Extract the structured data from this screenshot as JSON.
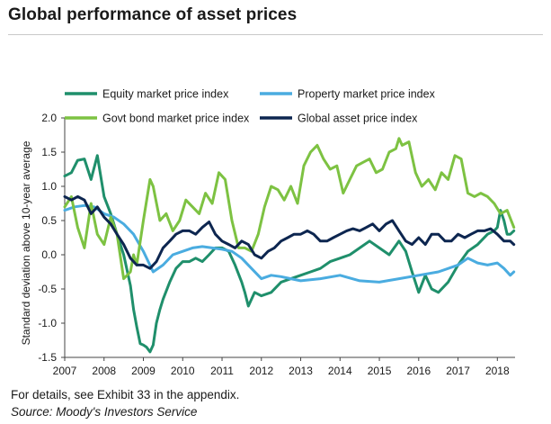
{
  "page": {
    "title": "Global performance of asset prices",
    "note": "For details, see Exhibit 33 in the appendix.",
    "source": "Source: Moody's Investors Service"
  },
  "chart_data": {
    "type": "line",
    "title": "Global performance of asset prices",
    "xlabel": "",
    "ylabel": "Standard deviation above 10-year average",
    "xlim": [
      2007.0,
      2018.45
    ],
    "ylim": [
      -1.5,
      2.0
    ],
    "x_ticks": [
      "2007",
      "2008",
      "2009",
      "2010",
      "2011",
      "2012",
      "2013",
      "2014",
      "2015",
      "2016",
      "2017",
      "2018"
    ],
    "y_ticks": [
      "2.0",
      "1.5",
      "1.0",
      "0.5",
      "0.0",
      "-0.5",
      "-1.0",
      "-1.5"
    ],
    "legend_position": "top",
    "series": [
      {
        "name": "Equity market price index",
        "color": "#1f8f6b",
        "x": [
          2007.0,
          2007.17,
          2007.33,
          2007.5,
          2007.67,
          2007.83,
          2008.0,
          2008.17,
          2008.33,
          2008.5,
          2008.67,
          2008.75,
          2008.83,
          2008.92,
          2009.0,
          2009.08,
          2009.17,
          2009.25,
          2009.33,
          2009.42,
          2009.5,
          2009.67,
          2009.83,
          2010.0,
          2010.17,
          2010.33,
          2010.5,
          2010.67,
          2010.83,
          2011.0,
          2011.17,
          2011.33,
          2011.5,
          2011.58,
          2011.67,
          2011.83,
          2012.0,
          2012.25,
          2012.5,
          2012.75,
          2013.0,
          2013.25,
          2013.5,
          2013.75,
          2014.0,
          2014.25,
          2014.5,
          2014.75,
          2015.0,
          2015.25,
          2015.5,
          2015.67,
          2015.83,
          2016.0,
          2016.17,
          2016.33,
          2016.5,
          2016.75,
          2017.0,
          2017.25,
          2017.5,
          2017.75,
          2017.92,
          2018.0,
          2018.08,
          2018.17,
          2018.25,
          2018.33,
          2018.42
        ],
        "values": [
          1.15,
          1.2,
          1.38,
          1.4,
          1.1,
          1.45,
          0.85,
          0.6,
          0.3,
          0.0,
          -0.45,
          -0.8,
          -1.05,
          -1.3,
          -1.32,
          -1.35,
          -1.42,
          -1.32,
          -1.0,
          -0.8,
          -0.65,
          -0.4,
          -0.2,
          -0.1,
          -0.1,
          -0.05,
          -0.1,
          0.0,
          0.1,
          0.1,
          0.05,
          -0.15,
          -0.4,
          -0.55,
          -0.75,
          -0.55,
          -0.6,
          -0.55,
          -0.4,
          -0.35,
          -0.3,
          -0.25,
          -0.2,
          -0.1,
          -0.05,
          0.0,
          0.1,
          0.2,
          0.1,
          0.0,
          0.2,
          0.05,
          -0.25,
          -0.55,
          -0.3,
          -0.5,
          -0.55,
          -0.4,
          -0.15,
          0.05,
          0.15,
          0.3,
          0.35,
          0.4,
          0.65,
          0.5,
          0.3,
          0.3,
          0.35
        ]
      },
      {
        "name": "Property market price index",
        "color": "#4aace0",
        "x": [
          2007.0,
          2007.25,
          2007.5,
          2007.75,
          2008.0,
          2008.25,
          2008.5,
          2008.75,
          2009.0,
          2009.25,
          2009.5,
          2009.75,
          2010.0,
          2010.25,
          2010.5,
          2010.75,
          2011.0,
          2011.25,
          2011.5,
          2011.75,
          2012.0,
          2012.25,
          2012.5,
          2012.75,
          2013.0,
          2013.5,
          2014.0,
          2014.5,
          2015.0,
          2015.5,
          2016.0,
          2016.5,
          2017.0,
          2017.25,
          2017.5,
          2017.75,
          2018.0,
          2018.17,
          2018.33,
          2018.42
        ],
        "values": [
          0.65,
          0.7,
          0.72,
          0.7,
          0.6,
          0.55,
          0.45,
          0.3,
          0.05,
          -0.25,
          -0.15,
          0.0,
          0.05,
          0.1,
          0.12,
          0.1,
          0.08,
          0.05,
          -0.05,
          -0.2,
          -0.35,
          -0.3,
          -0.32,
          -0.35,
          -0.38,
          -0.35,
          -0.3,
          -0.38,
          -0.4,
          -0.35,
          -0.3,
          -0.25,
          -0.15,
          -0.05,
          -0.12,
          -0.15,
          -0.12,
          -0.2,
          -0.3,
          -0.25
        ]
      },
      {
        "name": "Govt bond market price index",
        "color": "#7dc242",
        "x": [
          2007.0,
          2007.17,
          2007.33,
          2007.5,
          2007.67,
          2007.83,
          2008.0,
          2008.17,
          2008.33,
          2008.5,
          2008.67,
          2008.75,
          2008.83,
          2009.0,
          2009.17,
          2009.25,
          2009.42,
          2009.58,
          2009.75,
          2009.92,
          2010.08,
          2010.25,
          2010.42,
          2010.58,
          2010.75,
          2010.92,
          2011.08,
          2011.25,
          2011.42,
          2011.58,
          2011.75,
          2011.92,
          2012.08,
          2012.25,
          2012.42,
          2012.58,
          2012.75,
          2012.92,
          2013.08,
          2013.25,
          2013.42,
          2013.58,
          2013.75,
          2013.92,
          2014.08,
          2014.25,
          2014.42,
          2014.58,
          2014.75,
          2014.92,
          2015.08,
          2015.25,
          2015.42,
          2015.5,
          2015.58,
          2015.75,
          2015.92,
          2016.08,
          2016.25,
          2016.42,
          2016.58,
          2016.75,
          2016.92,
          2017.08,
          2017.25,
          2017.42,
          2017.58,
          2017.75,
          2017.92,
          2018.08,
          2018.25,
          2018.42
        ],
        "values": [
          0.7,
          0.85,
          0.4,
          0.1,
          0.75,
          0.3,
          0.15,
          0.55,
          0.3,
          -0.35,
          -0.25,
          0.0,
          -0.15,
          0.5,
          1.1,
          1.0,
          0.5,
          0.6,
          0.35,
          0.5,
          0.8,
          0.7,
          0.6,
          0.9,
          0.75,
          1.2,
          1.1,
          0.5,
          0.1,
          0.1,
          0.05,
          0.3,
          0.7,
          1.0,
          0.95,
          0.8,
          1.0,
          0.75,
          1.3,
          1.5,
          1.6,
          1.4,
          1.25,
          1.3,
          0.9,
          1.1,
          1.3,
          1.35,
          1.4,
          1.2,
          1.25,
          1.5,
          1.55,
          1.7,
          1.6,
          1.65,
          1.2,
          1.0,
          1.1,
          0.95,
          1.2,
          1.1,
          1.45,
          1.4,
          0.9,
          0.85,
          0.9,
          0.85,
          0.75,
          0.6,
          0.65,
          0.4
        ]
      },
      {
        "name": "Global asset price index",
        "color": "#0d2650",
        "x": [
          2007.0,
          2007.17,
          2007.33,
          2007.5,
          2007.67,
          2007.83,
          2008.0,
          2008.17,
          2008.33,
          2008.5,
          2008.67,
          2008.83,
          2009.0,
          2009.17,
          2009.33,
          2009.5,
          2009.67,
          2009.83,
          2010.0,
          2010.17,
          2010.33,
          2010.5,
          2010.67,
          2010.83,
          2011.0,
          2011.17,
          2011.33,
          2011.5,
          2011.67,
          2011.83,
          2012.0,
          2012.17,
          2012.33,
          2012.5,
          2012.67,
          2012.83,
          2013.0,
          2013.17,
          2013.33,
          2013.5,
          2013.67,
          2013.83,
          2014.0,
          2014.17,
          2014.33,
          2014.5,
          2014.67,
          2014.83,
          2015.0,
          2015.17,
          2015.33,
          2015.5,
          2015.67,
          2015.83,
          2016.0,
          2016.17,
          2016.33,
          2016.5,
          2016.67,
          2016.83,
          2017.0,
          2017.17,
          2017.33,
          2017.5,
          2017.67,
          2017.83,
          2018.0,
          2018.17,
          2018.33,
          2018.42
        ],
        "values": [
          0.85,
          0.8,
          0.85,
          0.8,
          0.6,
          0.7,
          0.55,
          0.45,
          0.3,
          0.15,
          -0.05,
          -0.15,
          -0.15,
          -0.2,
          -0.1,
          0.1,
          0.2,
          0.3,
          0.35,
          0.35,
          0.3,
          0.4,
          0.48,
          0.3,
          0.2,
          0.15,
          0.1,
          0.2,
          0.15,
          0.0,
          -0.05,
          0.05,
          0.1,
          0.2,
          0.25,
          0.3,
          0.3,
          0.35,
          0.3,
          0.2,
          0.2,
          0.25,
          0.3,
          0.35,
          0.38,
          0.35,
          0.4,
          0.45,
          0.35,
          0.45,
          0.5,
          0.35,
          0.2,
          0.15,
          0.25,
          0.15,
          0.3,
          0.3,
          0.2,
          0.2,
          0.3,
          0.25,
          0.3,
          0.35,
          0.35,
          0.38,
          0.3,
          0.2,
          0.2,
          0.15
        ]
      }
    ]
  }
}
